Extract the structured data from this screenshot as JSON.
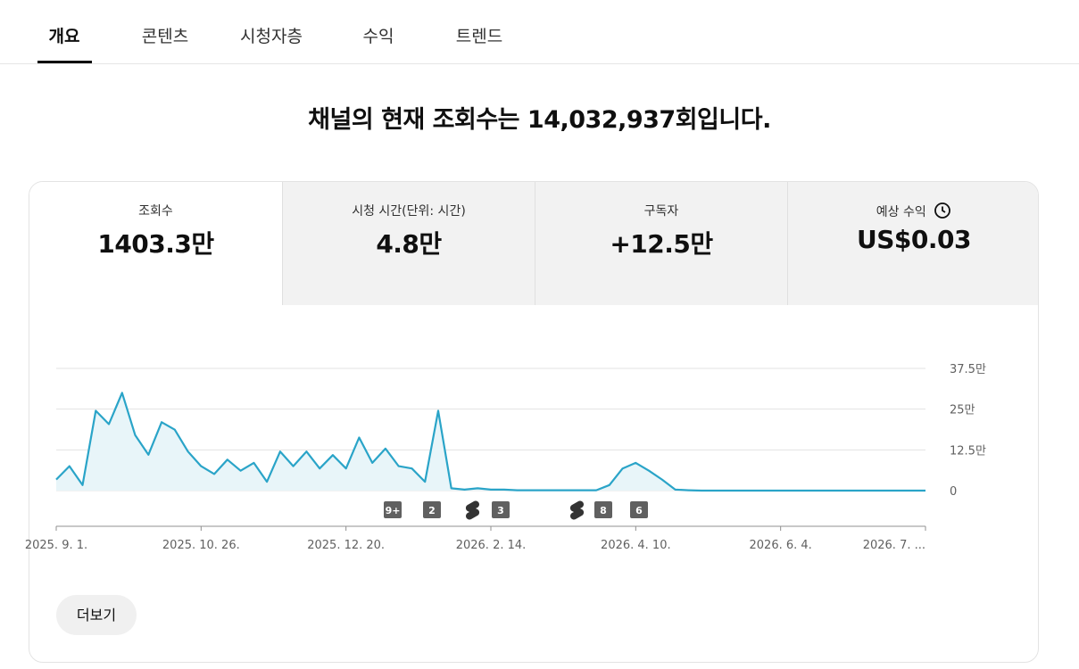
{
  "tabs": [
    "개요",
    "콘텐츠",
    "시청자층",
    "수익",
    "트렌드"
  ],
  "headline": "채널의 현재 조회수는 14,032,937회입니다.",
  "metrics": [
    {
      "label": "조회수",
      "value": "1403.3만"
    },
    {
      "label": "시청 시간(단위: 시간)",
      "value": "4.8만"
    },
    {
      "label": "구독자",
      "value": "+12.5만"
    },
    {
      "label": "예상 수익",
      "value": "US$0.03"
    }
  ],
  "more_button": "더보기",
  "chart_data": {
    "type": "area",
    "color": "#2aa4c8",
    "fill": "#e8f5f9",
    "grid": true,
    "categories": [
      "2025. 9. 1.",
      null,
      null,
      null,
      null,
      null,
      null,
      null,
      null,
      null,
      null,
      "2025. 10. 26.",
      null,
      null,
      null,
      null,
      null,
      null,
      null,
      null,
      null,
      null,
      "2025. 12. 20.",
      null,
      null,
      null,
      null,
      null,
      null,
      null,
      null,
      null,
      null,
      "2026. 2. 14.",
      null,
      null,
      null,
      null,
      null,
      null,
      null,
      null,
      null,
      null,
      "2026. 4. 10.",
      null,
      null,
      null,
      null,
      null,
      null,
      null,
      null,
      null,
      null,
      "2026. 6. 4.",
      null,
      null,
      null,
      null,
      null,
      null,
      null,
      null,
      null,
      null,
      "2026. 7. ..."
    ],
    "values": [
      3.4,
      7.5,
      1.7,
      24.5,
      20.4,
      30,
      17,
      11,
      21,
      18.7,
      12,
      7.5,
      5.1,
      9.5,
      6.1,
      8.5,
      2.7,
      12,
      7.5,
      12,
      6.8,
      10.9,
      6.8,
      16.3,
      8.5,
      12.9,
      7.5,
      6.8,
      2.7,
      24.5,
      0.7,
      0.3,
      0.7,
      0.3,
      0.3,
      0.1,
      0.1,
      0.1,
      0.1,
      0.1,
      0.1,
      0.1,
      1.7,
      6.8,
      8.5,
      6.1,
      3.4,
      0.3,
      0.1,
      0,
      0,
      0,
      0,
      0,
      0,
      0,
      0,
      0,
      0,
      0,
      0,
      0,
      0,
      0,
      0,
      0,
      0
    ],
    "ylim": [
      0,
      37.5
    ],
    "yticks": [
      0,
      {
        "value": 12.5,
        "label": "12.5만"
      },
      {
        "value": 25,
        "label": "25만"
      },
      {
        "value": 37.5,
        "label": "37.5만"
      }
    ],
    "markers": [
      "9+",
      "2",
      "3",
      "8",
      "6"
    ]
  }
}
